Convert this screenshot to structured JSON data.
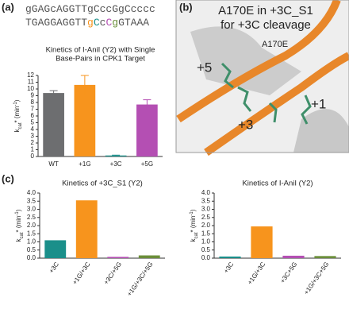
{
  "panels": {
    "a": "(a)",
    "b": "(b)",
    "c": "(c)"
  },
  "sequences": [
    [
      {
        "text": "gGAGcAGGTTgCccGgCcccc",
        "color": "#555555"
      }
    ],
    [
      {
        "text": "TGAGGAGGTT",
        "color": "#555555"
      },
      {
        "text": "g",
        "color": "#f7941d"
      },
      {
        "text": "C",
        "color": "#1a8f8a"
      },
      {
        "text": "c",
        "color": "#555555"
      },
      {
        "text": "C",
        "color": "#b44fb3"
      },
      {
        "text": "g",
        "color": "#6b8e3a"
      },
      {
        "text": "GTAAA",
        "color": "#555555"
      }
    ]
  ],
  "structure": {
    "title_lines": [
      "A170E in +3C_S1",
      "for +3C cleavage"
    ],
    "labels": [
      "A170E",
      "+5",
      "+3",
      "+1"
    ]
  },
  "chart_data": [
    {
      "type": "bar",
      "title_lines": [
        "Kinetics of I-AniI (Y2) with Single",
        "Base-Pairs in CPK1 Target"
      ],
      "ylabel": {
        "main": "k",
        "sub": "cat",
        "mid": "* (min",
        "sup": "-1",
        "end": ")"
      },
      "categories": [
        "WT",
        "+1G",
        "+3C",
        "+5G"
      ],
      "values": [
        9.4,
        10.6,
        0.15,
        7.7
      ],
      "errors": [
        0.35,
        1.4,
        0.05,
        0.7
      ],
      "colors": [
        "#6d6e70",
        "#f7941d",
        "#1a8f8a",
        "#b44fb3"
      ],
      "ylim": [
        0,
        12
      ],
      "yticks": [
        0,
        1,
        2,
        3,
        4,
        5,
        6,
        7,
        8,
        9,
        10,
        11,
        12
      ],
      "rotate_labels": false
    },
    {
      "type": "bar",
      "title_lines": [
        "Kinetics of +3C_S1 (Y2)"
      ],
      "ylabel": {
        "main": "k",
        "sub": "cat",
        "mid": "* (min",
        "sup": "-1",
        "end": ")"
      },
      "categories": [
        "+3C",
        "+1G/+3C",
        "+3C/+5G",
        "+1G/+3C/+5G"
      ],
      "values": [
        1.1,
        3.55,
        0.08,
        0.17
      ],
      "colors": [
        "#1a8f8a",
        "#f7941d",
        "#b44fb3",
        "#6b8e3a"
      ],
      "ylim": [
        0,
        4
      ],
      "yticks": [
        {
          "value": 0,
          "label": "0.0"
        },
        0.5,
        {
          "value": 1,
          "label": "1.0"
        },
        1.5,
        {
          "value": 2,
          "label": "2.0"
        },
        2.5,
        {
          "value": 3,
          "label": "3.0"
        },
        3.5,
        {
          "value": 4,
          "label": "4.0"
        }
      ],
      "rotate_labels": true
    },
    {
      "type": "bar",
      "title_lines": [
        "Kinetics of I-AniI (Y2)"
      ],
      "ylabel": {
        "main": "k",
        "sub": "cat",
        "mid": "* (min",
        "sup": "-1",
        "end": ")"
      },
      "categories": [
        "+3C",
        "+1G/+3C",
        "+3C+5G",
        "+1G/+3C+5G"
      ],
      "values": [
        0.1,
        1.95,
        0.15,
        0.13
      ],
      "colors": [
        "#1a8f8a",
        "#f7941d",
        "#b44fb3",
        "#6b8e3a"
      ],
      "ylim": [
        0,
        4
      ],
      "yticks": [
        {
          "value": 0,
          "label": "0.0"
        },
        0.5,
        {
          "value": 1,
          "label": "1.0"
        },
        1.5,
        {
          "value": 2,
          "label": "2.0"
        },
        2.5,
        {
          "value": 3,
          "label": "3.0"
        },
        3.5,
        {
          "value": 4,
          "label": "4.0"
        }
      ],
      "rotate_labels": true
    }
  ]
}
